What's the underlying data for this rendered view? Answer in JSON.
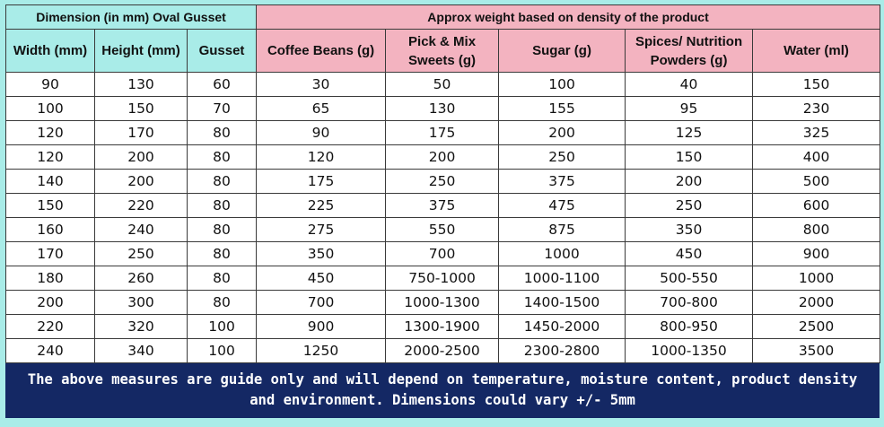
{
  "table": {
    "group_headers": {
      "dimension": "Dimension (in mm) Oval Gusset",
      "weight": "Approx weight based on density of the product"
    },
    "columns": [
      {
        "key": "width",
        "line1": "Width (mm)",
        "line2": ""
      },
      {
        "key": "height",
        "line1": "Height (mm)",
        "line2": ""
      },
      {
        "key": "gusset",
        "line1": "Gusset",
        "line2": ""
      },
      {
        "key": "coffee",
        "line1": "Coffee Beans (g)",
        "line2": ""
      },
      {
        "key": "sweets",
        "line1": "Pick & Mix",
        "line2": "Sweets (g)"
      },
      {
        "key": "sugar",
        "line1": "Sugar (g)",
        "line2": ""
      },
      {
        "key": "spices",
        "line1": "Spices/ Nutrition",
        "line2": "Powders (g)"
      },
      {
        "key": "water",
        "line1": "Water (ml)",
        "line2": ""
      }
    ],
    "rows": [
      [
        "90",
        "130",
        "60",
        "30",
        "50",
        "100",
        "40",
        "150"
      ],
      [
        "100",
        "150",
        "70",
        "65",
        "130",
        "155",
        "95",
        "230"
      ],
      [
        "120",
        "170",
        "80",
        "90",
        "175",
        "200",
        "125",
        "325"
      ],
      [
        "120",
        "200",
        "80",
        "120",
        "200",
        "250",
        "150",
        "400"
      ],
      [
        "140",
        "200",
        "80",
        "175",
        "250",
        "375",
        "200",
        "500"
      ],
      [
        "150",
        "220",
        "80",
        "225",
        "375",
        "475",
        "250",
        "600"
      ],
      [
        "160",
        "240",
        "80",
        "275",
        "550",
        "875",
        "350",
        "800"
      ],
      [
        "170",
        "250",
        "80",
        "350",
        "700",
        "1000",
        "450",
        "900"
      ],
      [
        "180",
        "260",
        "80",
        "450",
        "750-1000",
        "1000-1100",
        "500-550",
        "1000"
      ],
      [
        "200",
        "300",
        "80",
        "700",
        "1000-1300",
        "1400-1500",
        "700-800",
        "2000"
      ],
      [
        "220",
        "320",
        "100",
        "900",
        "1300-1900",
        "1450-2000",
        "800-950",
        "2500"
      ],
      [
        "240",
        "340",
        "100",
        "1250",
        "2000-2500",
        "2300-2800",
        "1000-1350",
        "3500"
      ]
    ]
  },
  "footer": {
    "line1": "The above measures are guide only and will depend on temperature, moisture content, product density",
    "line2": "and environment. Dimensions could vary +/- 5mm"
  },
  "colors": {
    "dimension_header_bg": "#a9ece8",
    "weight_header_bg": "#f3b3c0",
    "footer_bg": "#142864",
    "footer_text": "#ffffff"
  }
}
